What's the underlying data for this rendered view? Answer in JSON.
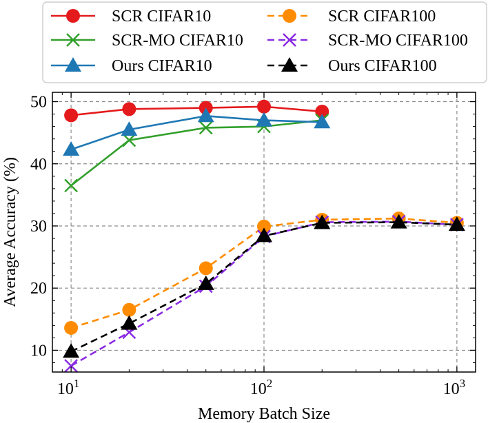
{
  "chart_data": {
    "type": "line",
    "xlabel": "Memory Batch Size",
    "ylabel": "Average Accuracy (%)",
    "xscale": "log",
    "xlim": [
      8,
      1250
    ],
    "ylim": [
      6.5,
      51.5
    ],
    "x_ticks": [
      {
        "value": 10,
        "base": "10",
        "exp": "1"
      },
      {
        "value": 100,
        "base": "10",
        "exp": "2"
      },
      {
        "value": 1000,
        "base": "10",
        "exp": "3"
      }
    ],
    "y_ticks": [
      10,
      20,
      30,
      40,
      50
    ],
    "grid": true,
    "legend_position": "above plot, two columns",
    "series": [
      {
        "name": "SCR CIFAR10",
        "color": "#e41a1c",
        "linestyle": "solid",
        "marker": "circle",
        "x": [
          10,
          20,
          50,
          100,
          200
        ],
        "y": [
          47.8,
          48.8,
          49.0,
          49.2,
          48.4
        ]
      },
      {
        "name": "SCR-MO CIFAR10",
        "color": "#33a02c",
        "linestyle": "solid",
        "marker": "x",
        "x": [
          10,
          20,
          50,
          100,
          200
        ],
        "y": [
          36.5,
          43.8,
          45.8,
          46.0,
          47.0
        ]
      },
      {
        "name": "Ours CIFAR10",
        "color": "#1f78b4",
        "linestyle": "solid",
        "marker": "triangle",
        "x": [
          10,
          20,
          50,
          100,
          200
        ],
        "y": [
          42.3,
          45.5,
          47.7,
          47.0,
          46.7
        ]
      },
      {
        "name": "SCR CIFAR100",
        "color": "#ff8c00",
        "linestyle": "dashed",
        "marker": "circle",
        "x": [
          10,
          20,
          50,
          100,
          200,
          500,
          1000
        ],
        "y": [
          13.6,
          16.5,
          23.2,
          29.9,
          31.0,
          31.2,
          30.5
        ]
      },
      {
        "name": "SCR-MO CIFAR100",
        "color": "#8a2be2",
        "linestyle": "dashed",
        "marker": "x",
        "x": [
          10,
          20,
          50,
          100,
          200,
          500,
          1000
        ],
        "y": [
          7.5,
          12.9,
          20.3,
          28.3,
          30.6,
          30.7,
          30.2
        ]
      },
      {
        "name": "Ours CIFAR100",
        "color": "#000000",
        "linestyle": "dashed",
        "marker": "triangle",
        "x": [
          10,
          20,
          50,
          100,
          200,
          500,
          1000
        ],
        "y": [
          9.8,
          14.3,
          20.7,
          28.4,
          30.5,
          30.6,
          30.2
        ]
      }
    ]
  }
}
